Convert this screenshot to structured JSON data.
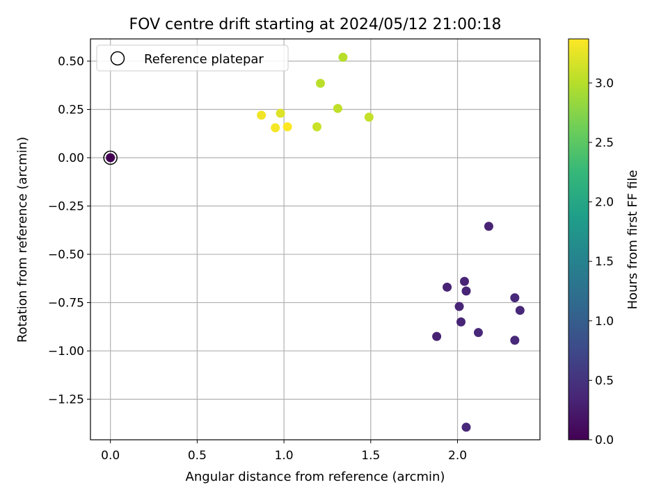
{
  "chart_data": {
    "type": "scatter",
    "title": "FOV centre drift starting at 2024/05/12 21:00:18",
    "xlabel": "Angular distance from reference (arcmin)",
    "ylabel": "Rotation from reference (arcmin)",
    "xlim": [
      -0.115,
      2.475
    ],
    "ylim": [
      -1.46,
      0.615
    ],
    "xticks": [
      0.0,
      0.5,
      1.0,
      1.5,
      2.0
    ],
    "xtick_labels": [
      "0.0",
      "0.5",
      "1.0",
      "1.5",
      "2.0"
    ],
    "yticks": [
      0.5,
      0.25,
      0.0,
      -0.25,
      -0.5,
      -0.75,
      -1.0,
      -1.25
    ],
    "ytick_labels": [
      "0.50",
      "0.25",
      "0.00",
      "−0.25",
      "−0.50",
      "−0.75",
      "−1.00",
      "−1.25"
    ],
    "grid": true,
    "legend": {
      "position": "upper-left",
      "entries": [
        "Reference platepar"
      ]
    },
    "reference_point": {
      "x": 0.0,
      "y": 0.0
    },
    "colormap": "viridis",
    "colorbar": {
      "label": "Hours from first FF file",
      "range": [
        0.0,
        3.37
      ],
      "ticks": [
        0.0,
        0.5,
        1.0,
        1.5,
        2.0,
        2.5,
        3.0
      ],
      "tick_labels": [
        "0.0",
        "0.5",
        "1.0",
        "1.5",
        "2.0",
        "2.5",
        "3.0"
      ]
    },
    "points": [
      {
        "x": 0.0,
        "y": 0.0,
        "c": 0.0
      },
      {
        "x": 1.34,
        "y": 0.52,
        "c": 3.0
      },
      {
        "x": 1.21,
        "y": 0.385,
        "c": 3.02
      },
      {
        "x": 1.31,
        "y": 0.255,
        "c": 3.05
      },
      {
        "x": 1.49,
        "y": 0.21,
        "c": 3.08
      },
      {
        "x": 1.19,
        "y": 0.16,
        "c": 3.1
      },
      {
        "x": 0.98,
        "y": 0.23,
        "c": 3.2
      },
      {
        "x": 0.87,
        "y": 0.22,
        "c": 3.3
      },
      {
        "x": 0.95,
        "y": 0.155,
        "c": 3.33
      },
      {
        "x": 1.02,
        "y": 0.16,
        "c": 3.37
      },
      {
        "x": 2.18,
        "y": -0.355,
        "c": 0.33
      },
      {
        "x": 2.04,
        "y": -0.64,
        "c": 0.35
      },
      {
        "x": 1.94,
        "y": -0.67,
        "c": 0.33
      },
      {
        "x": 2.05,
        "y": -0.69,
        "c": 0.35
      },
      {
        "x": 2.33,
        "y": -0.725,
        "c": 0.37
      },
      {
        "x": 2.01,
        "y": -0.77,
        "c": 0.35
      },
      {
        "x": 2.36,
        "y": -0.79,
        "c": 0.37
      },
      {
        "x": 2.02,
        "y": -0.85,
        "c": 0.35
      },
      {
        "x": 2.12,
        "y": -0.905,
        "c": 0.37
      },
      {
        "x": 1.88,
        "y": -0.925,
        "c": 0.33
      },
      {
        "x": 2.33,
        "y": -0.945,
        "c": 0.37
      },
      {
        "x": 2.05,
        "y": -1.395,
        "c": 0.37
      }
    ]
  }
}
